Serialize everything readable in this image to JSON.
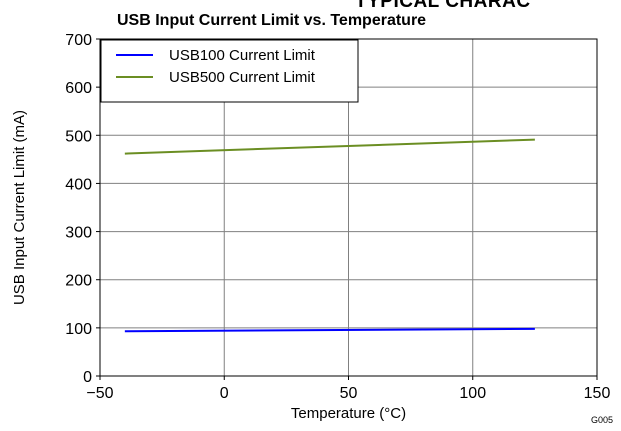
{
  "header_fragment": "TYPICAL CHARAC",
  "figure_id": "G005",
  "chart_data": {
    "type": "line",
    "title": "USB Input Current Limit vs. Temperature",
    "xlabel": "Temperature (°C)",
    "ylabel": "USB Input Current Limit (mA)",
    "xlim": [
      -50,
      150
    ],
    "ylim": [
      0,
      700
    ],
    "xticks": [
      -50,
      0,
      50,
      100,
      150
    ],
    "xtick_labels": [
      "−50",
      "0",
      "50",
      "100",
      "150"
    ],
    "yticks": [
      0,
      100,
      200,
      300,
      400,
      500,
      600,
      700
    ],
    "ytick_labels": [
      "0",
      "100",
      "200",
      "300",
      "400",
      "500",
      "600",
      "700"
    ],
    "grid": true,
    "legend": "top-left",
    "series": [
      {
        "name": "USB100 Current Limit",
        "color": "#0000ff",
        "x": [
          -40,
          125
        ],
        "y": [
          93,
          98
        ]
      },
      {
        "name": "USB500 Current Limit",
        "color": "#6b8e23",
        "x": [
          -40,
          125
        ],
        "y": [
          462,
          491
        ]
      }
    ]
  }
}
